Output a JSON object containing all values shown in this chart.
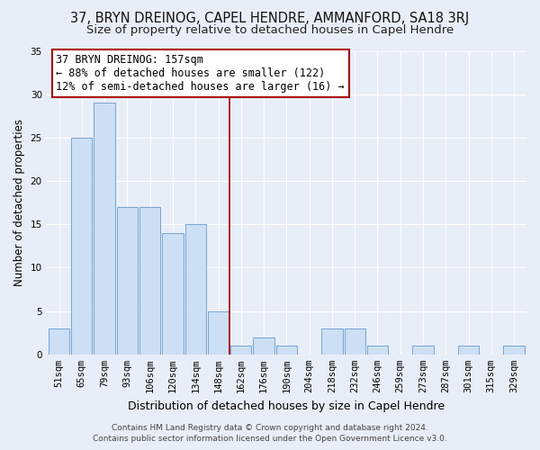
{
  "title": "37, BRYN DREINOG, CAPEL HENDRE, AMMANFORD, SA18 3RJ",
  "subtitle": "Size of property relative to detached houses in Capel Hendre",
  "xlabel": "Distribution of detached houses by size in Capel Hendre",
  "ylabel": "Number of detached properties",
  "bar_labels": [
    "51sqm",
    "65sqm",
    "79sqm",
    "93sqm",
    "106sqm",
    "120sqm",
    "134sqm",
    "148sqm",
    "162sqm",
    "176sqm",
    "190sqm",
    "204sqm",
    "218sqm",
    "232sqm",
    "246sqm",
    "259sqm",
    "273sqm",
    "287sqm",
    "301sqm",
    "315sqm",
    "329sqm"
  ],
  "bar_values": [
    3,
    25,
    29,
    17,
    17,
    14,
    15,
    5,
    1,
    2,
    1,
    0,
    3,
    3,
    1,
    0,
    1,
    0,
    1,
    0,
    1
  ],
  "bar_color": "#ccdff5",
  "bar_edge_color": "#6699cc",
  "vline_color": "#aa0000",
  "annotation_title": "37 BRYN DREINOG: 157sqm",
  "annotation_line1": "← 88% of detached houses are smaller (122)",
  "annotation_line2": "12% of semi-detached houses are larger (16) →",
  "annotation_box_edge": "#aa0000",
  "ylim": [
    0,
    35
  ],
  "yticks": [
    0,
    5,
    10,
    15,
    20,
    25,
    30,
    35
  ],
  "background_color": "#e8eef8",
  "grid_color": "#ffffff",
  "footer_line1": "Contains HM Land Registry data © Crown copyright and database right 2024.",
  "footer_line2": "Contains public sector information licensed under the Open Government Licence v3.0.",
  "title_fontsize": 10.5,
  "subtitle_fontsize": 9.5,
  "xlabel_fontsize": 9,
  "ylabel_fontsize": 8.5,
  "tick_fontsize": 7.5,
  "footer_fontsize": 6.5,
  "annot_fontsize": 8.5
}
